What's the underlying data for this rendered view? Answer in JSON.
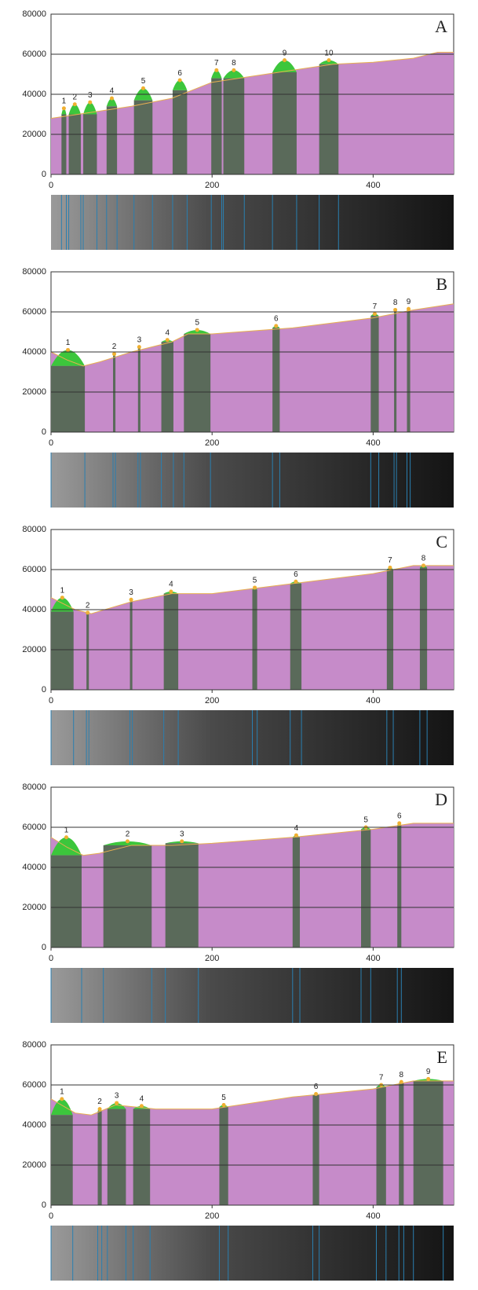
{
  "chart_data": [
    {
      "type": "area",
      "panel": "A",
      "xlim": [
        0,
        500
      ],
      "ylim": [
        0,
        80000
      ],
      "xticks": [
        0,
        200,
        400
      ],
      "yticks": [
        0,
        20000,
        40000,
        60000,
        80000
      ],
      "x": [
        0,
        50,
        100,
        150,
        200,
        250,
        300,
        350,
        400,
        450,
        480,
        500
      ],
      "values": [
        28000,
        31000,
        34000,
        38000,
        46000,
        49000,
        52000,
        55000,
        56000,
        58000,
        61000,
        61000
      ],
      "peaks": [
        {
          "label": "1",
          "start": 13,
          "end": 19,
          "base": 30000,
          "top": 33000
        },
        {
          "label": "2",
          "start": 22,
          "end": 37,
          "base": 30000,
          "top": 35000
        },
        {
          "label": "3",
          "start": 40,
          "end": 57,
          "base": 30000,
          "top": 36000
        },
        {
          "label": "4",
          "start": 69,
          "end": 82,
          "base": 34000,
          "top": 38000
        },
        {
          "label": "5",
          "start": 103,
          "end": 126,
          "base": 37000,
          "top": 43000
        },
        {
          "label": "6",
          "start": 151,
          "end": 169,
          "base": 42000,
          "top": 47000
        },
        {
          "label": "7",
          "start": 199,
          "end": 212,
          "base": 48000,
          "top": 52000
        },
        {
          "label": "8",
          "start": 214,
          "end": 240,
          "base": 48000,
          "top": 52000
        },
        {
          "label": "9",
          "start": 275,
          "end": 305,
          "base": 51000,
          "top": 57000
        },
        {
          "label": "10",
          "start": 333,
          "end": 357,
          "base": 55000,
          "top": 57000
        }
      ]
    },
    {
      "type": "area",
      "panel": "B",
      "xlim": [
        0,
        500
      ],
      "ylim": [
        0,
        80000
      ],
      "xticks": [
        0,
        200,
        400
      ],
      "yticks": [
        0,
        20000,
        40000,
        60000,
        80000
      ],
      "x": [
        0,
        20,
        40,
        60,
        100,
        150,
        170,
        200,
        300,
        400,
        450,
        500
      ],
      "values": [
        40000,
        36000,
        33000,
        35000,
        40000,
        45000,
        49000,
        49000,
        52000,
        57000,
        61000,
        64000
      ],
      "peaks": [
        {
          "label": "1",
          "start": 0,
          "end": 42,
          "base": 33000,
          "top": 41000
        },
        {
          "label": "2",
          "start": 77,
          "end": 80,
          "base": 38000,
          "top": 39000
        },
        {
          "label": "3",
          "start": 108,
          "end": 111,
          "base": 42000,
          "top": 42500
        },
        {
          "label": "4",
          "start": 137,
          "end": 152,
          "base": 45000,
          "top": 46000
        },
        {
          "label": "5",
          "start": 165,
          "end": 198,
          "base": 49000,
          "top": 51000
        },
        {
          "label": "6",
          "start": 275,
          "end": 284,
          "base": 52000,
          "top": 53000
        },
        {
          "label": "7",
          "start": 397,
          "end": 407,
          "base": 58000,
          "top": 59000
        },
        {
          "label": "8",
          "start": 426,
          "end": 429,
          "base": 60000,
          "top": 61000
        },
        {
          "label": "9",
          "start": 442,
          "end": 446,
          "base": 61000,
          "top": 61500
        }
      ]
    },
    {
      "type": "area",
      "panel": "C",
      "xlim": [
        0,
        500
      ],
      "ylim": [
        0,
        80000
      ],
      "xticks": [
        0,
        200,
        400
      ],
      "yticks": [
        0,
        20000,
        40000,
        60000,
        80000
      ],
      "x": [
        0,
        30,
        50,
        100,
        150,
        200,
        300,
        400,
        450,
        500
      ],
      "values": [
        46000,
        40000,
        38000,
        44000,
        48000,
        48000,
        53000,
        58000,
        62000,
        62000
      ],
      "peaks": [
        {
          "label": "1",
          "start": 0,
          "end": 28,
          "base": 39000,
          "top": 46000
        },
        {
          "label": "2",
          "start": 44,
          "end": 47,
          "base": 38000,
          "top": 38500
        },
        {
          "label": "3",
          "start": 98,
          "end": 101,
          "base": 44000,
          "top": 45000
        },
        {
          "label": "4",
          "start": 140,
          "end": 158,
          "base": 48000,
          "top": 49000
        },
        {
          "label": "5",
          "start": 250,
          "end": 256,
          "base": 50000,
          "top": 51000
        },
        {
          "label": "6",
          "start": 297,
          "end": 311,
          "base": 53000,
          "top": 54000
        },
        {
          "label": "7",
          "start": 417,
          "end": 425,
          "base": 60000,
          "top": 61000
        },
        {
          "label": "8",
          "start": 458,
          "end": 467,
          "base": 61000,
          "top": 62000
        }
      ]
    },
    {
      "type": "area",
      "panel": "D",
      "xlim": [
        0,
        500
      ],
      "ylim": [
        0,
        80000
      ],
      "xticks": [
        0,
        200,
        400
      ],
      "yticks": [
        0,
        20000,
        40000,
        60000,
        80000
      ],
      "x": [
        0,
        20,
        40,
        60,
        100,
        150,
        200,
        300,
        400,
        450,
        500
      ],
      "values": [
        55000,
        50000,
        46000,
        47000,
        51000,
        51000,
        52000,
        55000,
        59000,
        62000,
        62000
      ],
      "peaks": [
        {
          "label": "1",
          "start": 0,
          "end": 38,
          "base": 46000,
          "top": 55000
        },
        {
          "label": "2",
          "start": 65,
          "end": 125,
          "base": 51000,
          "top": 53000
        },
        {
          "label": "3",
          "start": 142,
          "end": 183,
          "base": 52000,
          "top": 53000
        },
        {
          "label": "4",
          "start": 300,
          "end": 309,
          "base": 55000,
          "top": 56000
        },
        {
          "label": "5",
          "start": 385,
          "end": 397,
          "base": 59000,
          "top": 60000
        },
        {
          "label": "6",
          "start": 430,
          "end": 435,
          "base": 61000,
          "top": 62000
        }
      ]
    },
    {
      "type": "area",
      "panel": "E",
      "xlim": [
        0,
        500
      ],
      "ylim": [
        0,
        80000
      ],
      "xticks": [
        0,
        200,
        400
      ],
      "yticks": [
        0,
        20000,
        40000,
        60000,
        80000
      ],
      "x": [
        0,
        30,
        50,
        80,
        130,
        200,
        300,
        400,
        450,
        500
      ],
      "values": [
        53000,
        46000,
        45000,
        50000,
        48000,
        48000,
        54000,
        58000,
        62000,
        62000
      ],
      "peaks": [
        {
          "label": "1",
          "start": 0,
          "end": 27,
          "base": 45000,
          "top": 53000
        },
        {
          "label": "2",
          "start": 58,
          "end": 63,
          "base": 47000,
          "top": 48000
        },
        {
          "label": "3",
          "start": 70,
          "end": 93,
          "base": 48000,
          "top": 51000
        },
        {
          "label": "4",
          "start": 102,
          "end": 123,
          "base": 48000,
          "top": 49500
        },
        {
          "label": "5",
          "start": 209,
          "end": 220,
          "base": 49000,
          "top": 50000
        },
        {
          "label": "6",
          "start": 325,
          "end": 333,
          "base": 55000,
          "top": 55500
        },
        {
          "label": "7",
          "start": 404,
          "end": 416,
          "base": 59000,
          "top": 60000
        },
        {
          "label": "8",
          "start": 432,
          "end": 438,
          "base": 61000,
          "top": 61500
        },
        {
          "label": "9",
          "start": 450,
          "end": 487,
          "base": 62000,
          "top": 63000
        }
      ]
    }
  ]
}
